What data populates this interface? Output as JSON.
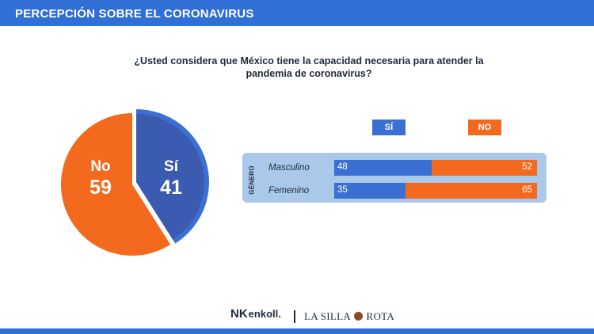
{
  "header": {
    "title": "PERCEPCIÓN SOBRE EL CORONAVIRUS"
  },
  "question": "¿Usted considera que México tiene la capacidad necesaria para atender la pandemia de coronavirus?",
  "colors": {
    "header": "#2f6fd6",
    "si": "#3a70d4",
    "si_dark": "#3b5bb0",
    "no": "#f36a1e",
    "panel": "#a9c8ea"
  },
  "chart_data": [
    {
      "type": "pie",
      "slices": [
        {
          "label": "Sí",
          "value": 41
        },
        {
          "label": "No",
          "value": 59
        }
      ]
    },
    {
      "type": "bar",
      "orientation": "horizontal",
      "stacked": true,
      "group_label": "GÉNERO",
      "categories": [
        "Masculino",
        "Femenino"
      ],
      "series": [
        {
          "name": "SÍ",
          "values": [
            48,
            35
          ]
        },
        {
          "name": "NO",
          "values": [
            52,
            65
          ]
        }
      ]
    }
  ],
  "footer": {
    "logo1_mark": "NK",
    "logo1_text": "enkoll.",
    "logo2_text_a": "LA SILLA",
    "logo2_text_b": "ROTA"
  }
}
